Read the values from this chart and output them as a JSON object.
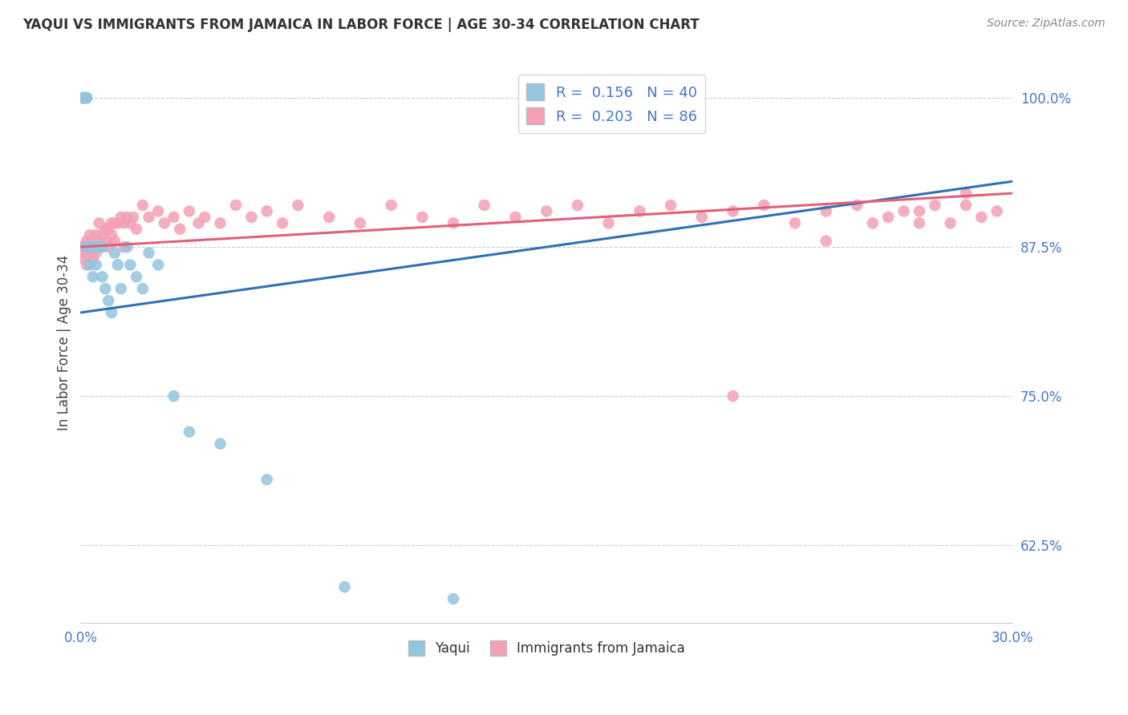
{
  "title": "YAQUI VS IMMIGRANTS FROM JAMAICA IN LABOR FORCE | AGE 30-34 CORRELATION CHART",
  "source": "Source: ZipAtlas.com",
  "ylabel": "In Labor Force | Age 30-34",
  "ytick_labels": [
    "100.0%",
    "87.5%",
    "75.0%",
    "62.5%"
  ],
  "ytick_values": [
    1.0,
    0.875,
    0.75,
    0.625
  ],
  "xlim": [
    0.0,
    0.3
  ],
  "ylim": [
    0.56,
    1.03
  ],
  "legend_blue_r": "0.156",
  "legend_blue_n": "40",
  "legend_pink_r": "0.203",
  "legend_pink_n": "86",
  "blue_color": "#92c5de",
  "pink_color": "#f4a0b5",
  "blue_line_color": "#3070b8",
  "pink_line_color": "#e0607a",
  "title_color": "#333333",
  "axis_label_color": "#4477cc",
  "grid_color": "#cccccc",
  "background_color": "#ffffff",
  "yaqui_x": [
    0.0005,
    0.0008,
    0.001,
    0.001,
    0.0012,
    0.0012,
    0.0015,
    0.0015,
    0.002,
    0.002,
    0.002,
    0.002,
    0.003,
    0.003,
    0.003,
    0.004,
    0.004,
    0.005,
    0.005,
    0.006,
    0.007,
    0.007,
    0.008,
    0.009,
    0.01,
    0.011,
    0.012,
    0.013,
    0.015,
    0.016,
    0.018,
    0.02,
    0.022,
    0.025,
    0.03,
    0.035,
    0.045,
    0.06,
    0.085,
    0.12
  ],
  "yaqui_y": [
    1.0,
    1.0,
    1.0,
    1.0,
    1.0,
    1.0,
    1.0,
    1.0,
    1.0,
    1.0,
    0.875,
    0.875,
    0.875,
    0.875,
    0.86,
    0.875,
    0.85,
    0.875,
    0.86,
    0.875,
    0.875,
    0.85,
    0.84,
    0.83,
    0.82,
    0.87,
    0.86,
    0.84,
    0.875,
    0.86,
    0.85,
    0.84,
    0.87,
    0.86,
    0.75,
    0.72,
    0.71,
    0.68,
    0.59,
    0.58
  ],
  "jamaica_x": [
    0.0003,
    0.0005,
    0.0007,
    0.001,
    0.001,
    0.001,
    0.0012,
    0.0015,
    0.002,
    0.002,
    0.002,
    0.003,
    0.003,
    0.003,
    0.004,
    0.004,
    0.004,
    0.005,
    0.005,
    0.005,
    0.006,
    0.006,
    0.007,
    0.007,
    0.008,
    0.008,
    0.009,
    0.009,
    0.01,
    0.01,
    0.011,
    0.011,
    0.012,
    0.013,
    0.014,
    0.014,
    0.015,
    0.016,
    0.017,
    0.018,
    0.02,
    0.022,
    0.025,
    0.027,
    0.03,
    0.032,
    0.035,
    0.038,
    0.04,
    0.045,
    0.05,
    0.055,
    0.06,
    0.065,
    0.07,
    0.08,
    0.09,
    0.1,
    0.11,
    0.12,
    0.13,
    0.14,
    0.15,
    0.16,
    0.17,
    0.18,
    0.19,
    0.2,
    0.21,
    0.22,
    0.23,
    0.24,
    0.25,
    0.26,
    0.27,
    0.275,
    0.28,
    0.285,
    0.29,
    0.295,
    0.21,
    0.24,
    0.255,
    0.265,
    0.27,
    0.285
  ],
  "jamaica_y": [
    0.875,
    0.875,
    0.875,
    0.875,
    0.87,
    0.865,
    0.875,
    0.875,
    0.88,
    0.87,
    0.86,
    0.885,
    0.875,
    0.87,
    0.88,
    0.875,
    0.865,
    0.885,
    0.875,
    0.87,
    0.895,
    0.88,
    0.885,
    0.875,
    0.89,
    0.88,
    0.89,
    0.875,
    0.895,
    0.885,
    0.895,
    0.88,
    0.895,
    0.9,
    0.895,
    0.875,
    0.9,
    0.895,
    0.9,
    0.89,
    0.91,
    0.9,
    0.905,
    0.895,
    0.9,
    0.89,
    0.905,
    0.895,
    0.9,
    0.895,
    0.91,
    0.9,
    0.905,
    0.895,
    0.91,
    0.9,
    0.895,
    0.91,
    0.9,
    0.895,
    0.91,
    0.9,
    0.905,
    0.91,
    0.895,
    0.905,
    0.91,
    0.9,
    0.905,
    0.91,
    0.895,
    0.905,
    0.91,
    0.9,
    0.905,
    0.91,
    0.895,
    0.91,
    0.9,
    0.905,
    0.75,
    0.88,
    0.895,
    0.905,
    0.895,
    0.92
  ],
  "blue_trend_x": [
    0.0,
    0.3
  ],
  "blue_trend_y": [
    0.82,
    0.93
  ],
  "pink_trend_x": [
    0.0,
    0.3
  ],
  "pink_trend_y": [
    0.875,
    0.92
  ]
}
